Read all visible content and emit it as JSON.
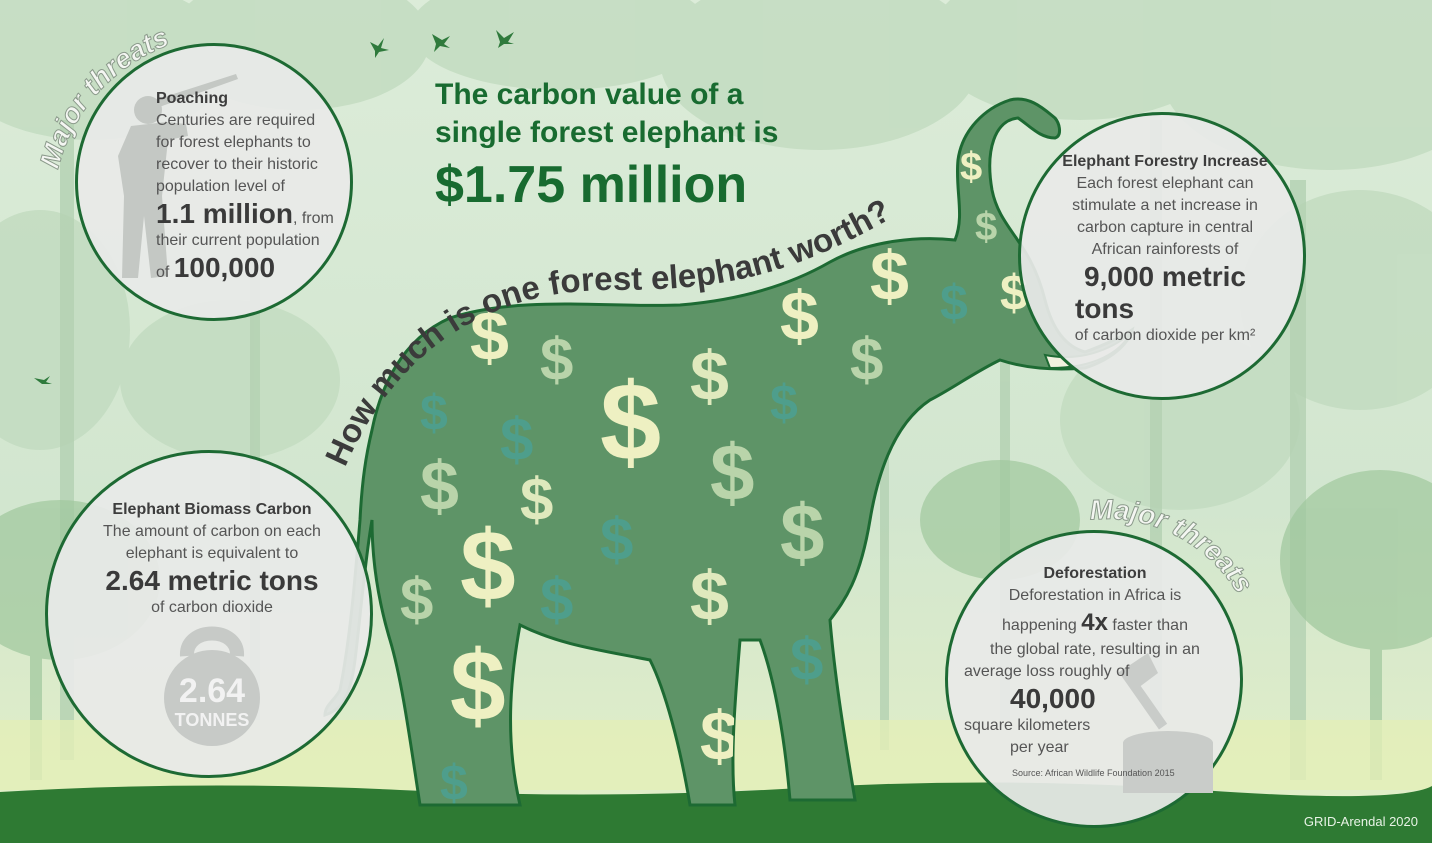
{
  "title": {
    "line1": "The carbon value of a",
    "line2": "single forest elephant is",
    "value": "$1.75 million"
  },
  "question": "How much is one forest elephant worth?",
  "threat_label": "Major threats",
  "poaching": {
    "heading": "Poaching",
    "lines": [
      "Centuries are required",
      "for forest elephants to",
      "recover to their historic",
      "population level of"
    ],
    "number": "1.1 million",
    "after_number": ", from",
    "line5": "their current population",
    "of_word": "of",
    "number2": "100,000"
  },
  "forestry": {
    "heading": "Elephant Forestry Increase",
    "lines": [
      "Each forest elephant can",
      "stimulate a net increase in",
      "carbon capture in central",
      "African rainforests of"
    ],
    "number_line1": "9,000 metric",
    "number_line2": "tons",
    "unit": "of carbon dioxide per km²"
  },
  "biomass": {
    "heading": "Elephant Biomass Carbon",
    "lines": [
      "The amount of carbon on each",
      "elephant is equivalent to"
    ],
    "number": "2.64 metric tons",
    "unit": "of carbon dioxide",
    "weight_value": "2.64",
    "weight_unit": "TONNES"
  },
  "deforestation": {
    "heading": "Deforestation",
    "line1": "Deforestation in Africa is",
    "line2_pre": "happening",
    "multiplier": "4x",
    "line2_post": "faster than",
    "line3": "the global rate, resulting in an",
    "line4": "average loss roughly of",
    "number": "40,000",
    "line5": "square kilometers",
    "line6": "per year",
    "source": "Source: African Wildlife Foundation 2015"
  },
  "credit": "GRID-Arendal 2020",
  "colors": {
    "dark_green": "#1d6a33",
    "title_green": "#186b30",
    "elephant_green": "#5e9467",
    "dollar_yellow": "#eef0c2",
    "dollar_teal": "#4e9e8c",
    "ground": "#2e7a33",
    "circle_fill": "#e8eae8"
  },
  "icons": [
    "bird-icon",
    "hunter-silhouette-icon",
    "kettlebell-icon",
    "axe-stump-icon",
    "dollar-sign-icon"
  ]
}
